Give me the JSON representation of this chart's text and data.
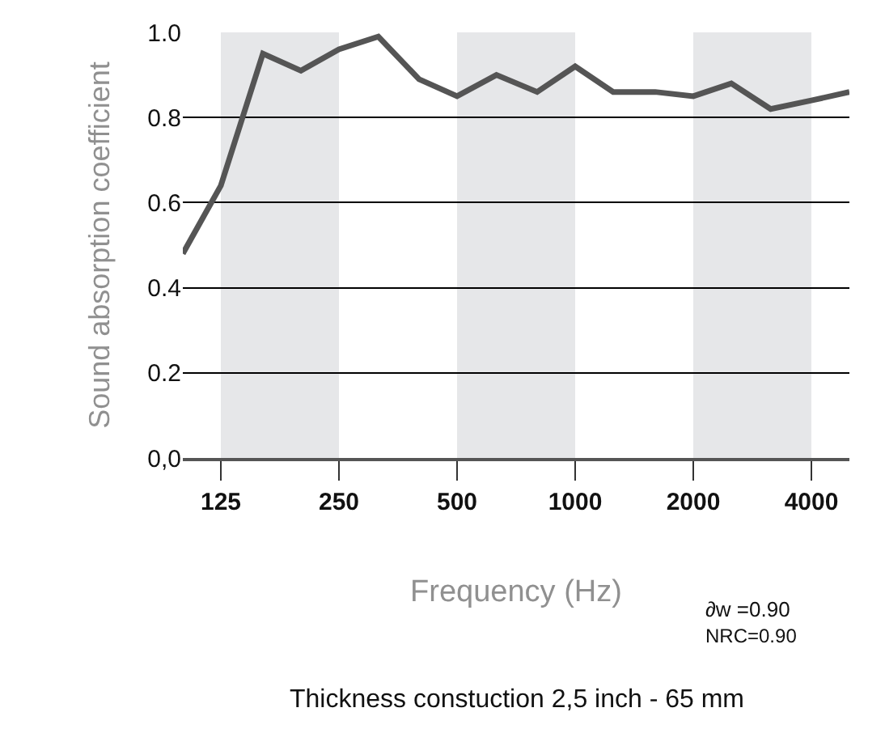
{
  "chart_data": {
    "type": "line",
    "xlabel": "Frequency (Hz)",
    "ylabel": "Sound absorption coefficient",
    "x": [
      100,
      125,
      160,
      200,
      250,
      315,
      400,
      500,
      630,
      800,
      1000,
      1250,
      1600,
      2000,
      2500,
      3150,
      4000,
      5000
    ],
    "series": [
      {
        "color": "#555555",
        "values": [
          0.48,
          0.64,
          0.95,
          0.91,
          0.96,
          0.99,
          0.89,
          0.85,
          0.9,
          0.86,
          0.92,
          0.86,
          0.86,
          0.85,
          0.88,
          0.82,
          0.84,
          0.86
        ]
      }
    ],
    "log": "x",
    "xlim": [
      100,
      5000
    ],
    "xticks": [
      125,
      250,
      500,
      1000,
      2000,
      4000
    ],
    "ylim": [
      0,
      1
    ],
    "yticks": [
      {
        "value": 0,
        "label": "0,0"
      },
      0.2,
      0.4,
      0.6,
      0.8,
      {
        "value": 1,
        "label": "1.0"
      }
    ],
    "grid": "y",
    "marker": "none",
    "line_style": "solid",
    "bands": [
      {
        "axis": "x",
        "from": 125,
        "to": 250,
        "color": "#e6e7e9"
      },
      {
        "axis": "x",
        "from": 500,
        "to": 1000,
        "color": "#e6e7e9"
      },
      {
        "axis": "x",
        "from": 2000,
        "to": 4000,
        "color": "#e6e7e9"
      }
    ],
    "annotations": [
      "∂w =0.90",
      "NRC=0.90",
      "Thickness constuction 2,5 inch - 65 mm"
    ]
  }
}
